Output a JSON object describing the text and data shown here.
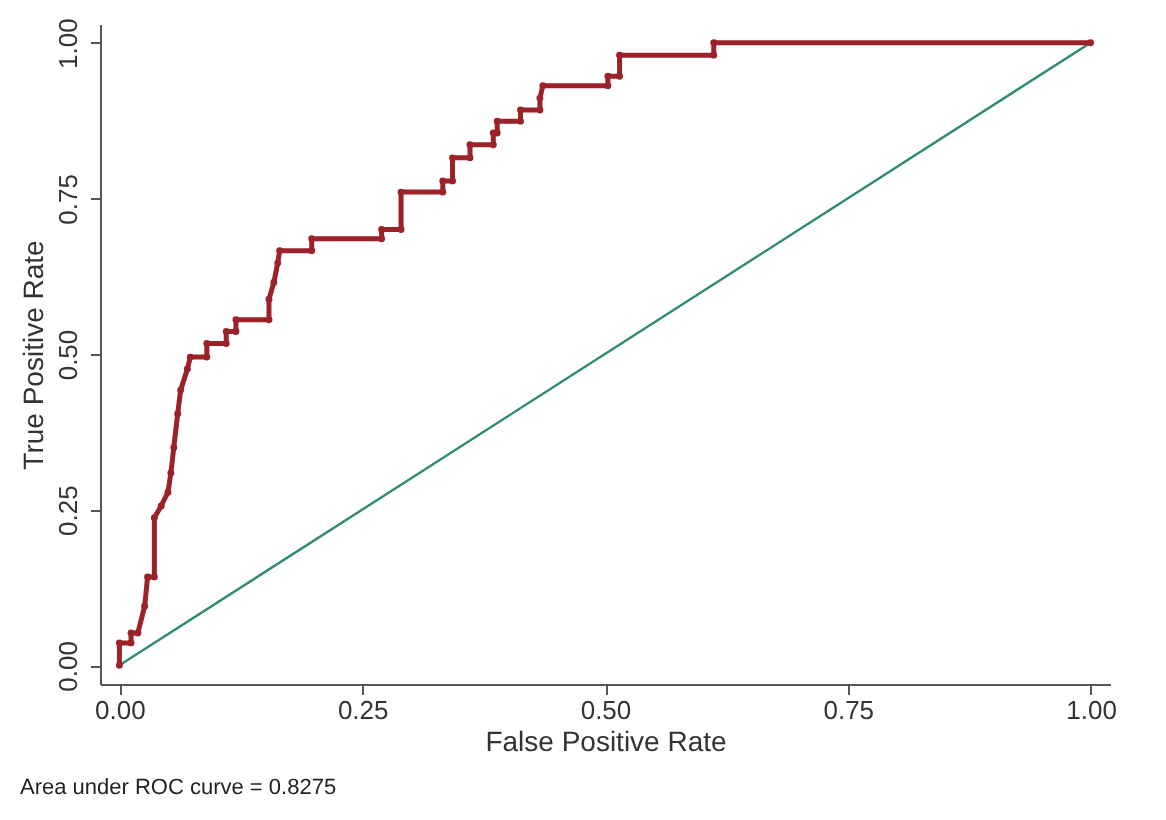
{
  "chart_data": {
    "type": "line",
    "xlabel": "False Positive Rate",
    "ylabel": "True Positive Rate",
    "annotations": [
      "Area under ROC curve = 0.8275"
    ],
    "xlim": [
      -0.02,
      1.02
    ],
    "ylim": [
      -0.03,
      1.03
    ],
    "xticks": [
      {
        "value": 0,
        "label": "0.00"
      },
      {
        "value": 0.25,
        "label": "0.25"
      },
      {
        "value": 0.5,
        "label": "0.50"
      },
      {
        "value": 0.75,
        "label": "0.75"
      },
      {
        "value": 1,
        "label": "1.00"
      }
    ],
    "yticks": [
      {
        "value": 0,
        "label": "0.00"
      },
      {
        "value": 0.25,
        "label": "0.25"
      },
      {
        "value": 0.5,
        "label": "0.50"
      },
      {
        "value": 0.75,
        "label": "0.75"
      },
      {
        "value": 1,
        "label": "1.00"
      }
    ],
    "grid": false,
    "series": [
      {
        "color": "#2e8b6e",
        "marker": "none",
        "x": [
          0,
          1
        ],
        "values": [
          0,
          1
        ]
      },
      {
        "color": "#9b2228",
        "marker": "circle",
        "x": [
          0,
          0,
          0.012,
          0.012,
          0.019,
          0.026,
          0.029,
          0.036,
          0.036,
          0.043,
          0.05,
          0.053,
          0.056,
          0.06,
          0.063,
          0.07,
          0.073,
          0.09,
          0.09,
          0.11,
          0.11,
          0.12,
          0.12,
          0.154,
          0.154,
          0.159,
          0.163,
          0.165,
          0.198,
          0.198,
          0.27,
          0.27,
          0.29,
          0.29,
          0.333,
          0.333,
          0.343,
          0.343,
          0.361,
          0.361,
          0.385,
          0.385,
          0.389,
          0.389,
          0.413,
          0.413,
          0.433,
          0.433,
          0.436,
          0.503,
          0.503,
          0.515,
          0.515,
          0.612,
          0.612,
          1
        ],
        "values": [
          0,
          0.036,
          0.036,
          0.052,
          0.052,
          0.095,
          0.142,
          0.142,
          0.237,
          0.256,
          0.278,
          0.309,
          0.35,
          0.404,
          0.442,
          0.476,
          0.495,
          0.495,
          0.517,
          0.517,
          0.536,
          0.536,
          0.555,
          0.555,
          0.588,
          0.615,
          0.646,
          0.666,
          0.666,
          0.685,
          0.685,
          0.7,
          0.7,
          0.76,
          0.76,
          0.778,
          0.778,
          0.815,
          0.815,
          0.836,
          0.836,
          0.855,
          0.855,
          0.874,
          0.874,
          0.892,
          0.892,
          0.911,
          0.931,
          0.931,
          0.946,
          0.946,
          0.98,
          0.98,
          1,
          1
        ]
      }
    ]
  }
}
